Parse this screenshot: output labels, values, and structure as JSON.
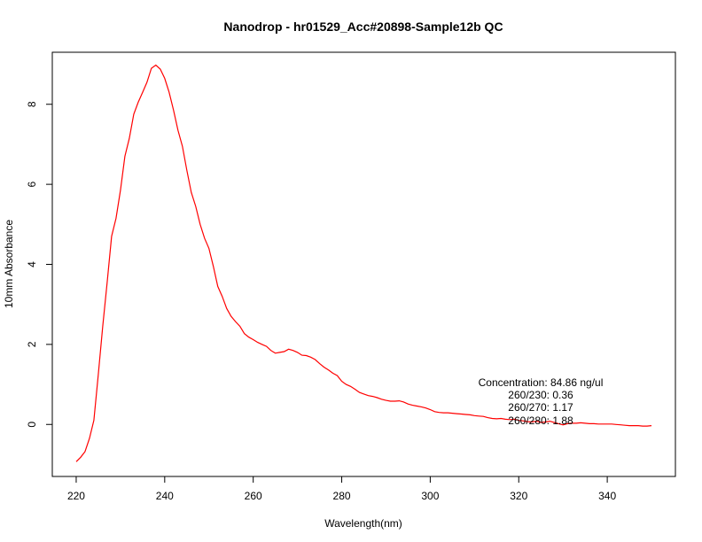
{
  "chart_data": {
    "type": "line",
    "title": "Nanodrop - hr01529_Acc#20898-Sample12b QC",
    "xlabel": "Wavelength(nm)",
    "ylabel": "10mm Absorbance",
    "xlim": [
      214.6,
      355.4
    ],
    "ylim": [
      -1.3,
      9.3
    ],
    "x_ticks": [
      220,
      240,
      260,
      280,
      300,
      320,
      340
    ],
    "y_ticks": [
      0,
      2,
      4,
      6,
      8
    ],
    "line_color": "#ff0000",
    "grid": false,
    "annotations": [
      "Concentration: 84.86 ng/ul",
      "260/230: 0.36",
      "260/270: 1.17",
      "260/280: 1.88"
    ],
    "series": [
      {
        "x": [
          220,
          221,
          222,
          223,
          224,
          225,
          226,
          227,
          228,
          229,
          230,
          231,
          232,
          233,
          234,
          235,
          236,
          237,
          238,
          239,
          240,
          241,
          242,
          243,
          244,
          245,
          246,
          247,
          248,
          249,
          250,
          251,
          252,
          253,
          254,
          255,
          256,
          257,
          258,
          259,
          260,
          261,
          262,
          263,
          264,
          265,
          266,
          267,
          268,
          269,
          270,
          271,
          272,
          273,
          274,
          275,
          276,
          277,
          278,
          279,
          280,
          281,
          282,
          283,
          284,
          285,
          286,
          287,
          288,
          289,
          290,
          291,
          292,
          293,
          294,
          295,
          296,
          297,
          298,
          299,
          300,
          301,
          302,
          303,
          304,
          305,
          306,
          307,
          308,
          309,
          310,
          311,
          312,
          313,
          314,
          315,
          316,
          317,
          318,
          319,
          320,
          321,
          322,
          323,
          324,
          325,
          326,
          327,
          328,
          329,
          330,
          331,
          332,
          333,
          334,
          335,
          336,
          337,
          338,
          339,
          340,
          341,
          342,
          343,
          344,
          345,
          346,
          347,
          348,
          349,
          350
        ],
        "y": [
          -0.93,
          -0.82,
          -0.68,
          -0.35,
          0.1,
          1.25,
          2.45,
          3.55,
          4.7,
          5.15,
          5.85,
          6.7,
          7.15,
          7.75,
          8.05,
          8.3,
          8.55,
          8.9,
          8.98,
          8.88,
          8.65,
          8.3,
          7.85,
          7.35,
          6.95,
          6.35,
          5.8,
          5.45,
          5.0,
          4.65,
          4.4,
          3.95,
          3.45,
          3.2,
          2.9,
          2.7,
          2.57,
          2.45,
          2.27,
          2.18,
          2.12,
          2.05,
          2.0,
          1.95,
          1.85,
          1.78,
          1.8,
          1.82,
          1.88,
          1.85,
          1.8,
          1.73,
          1.72,
          1.68,
          1.62,
          1.52,
          1.43,
          1.36,
          1.28,
          1.22,
          1.08,
          1.0,
          0.95,
          0.88,
          0.8,
          0.76,
          0.72,
          0.7,
          0.67,
          0.63,
          0.6,
          0.58,
          0.58,
          0.59,
          0.56,
          0.51,
          0.48,
          0.46,
          0.44,
          0.41,
          0.37,
          0.32,
          0.3,
          0.29,
          0.29,
          0.28,
          0.27,
          0.26,
          0.25,
          0.24,
          0.22,
          0.21,
          0.2,
          0.17,
          0.15,
          0.14,
          0.15,
          0.13,
          0.12,
          0.13,
          0.1,
          0.09,
          0.07,
          0.06,
          0.08,
          0.05,
          0.06,
          0.08,
          0.05,
          0.02,
          -0.01,
          0.02,
          0.03,
          0.03,
          0.04,
          0.03,
          0.02,
          0.02,
          0.01,
          0.01,
          0.01,
          0.01,
          0.0,
          -0.01,
          -0.02,
          -0.03,
          -0.03,
          -0.03,
          -0.04,
          -0.04,
          -0.03
        ]
      }
    ]
  }
}
